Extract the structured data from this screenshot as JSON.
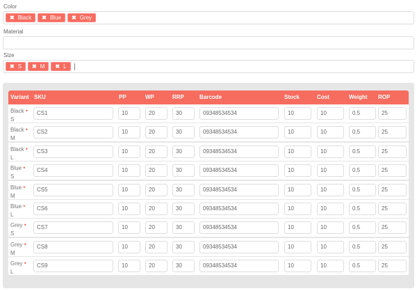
{
  "color": {
    "label": "Color",
    "tags": [
      "Black",
      "Blue",
      "Grey"
    ]
  },
  "material": {
    "label": "Material",
    "value": ""
  },
  "size": {
    "label": "Size",
    "tags": [
      "S",
      "M",
      "L"
    ]
  },
  "accent": "#f66c5f",
  "table": {
    "headers": [
      "Variant",
      "SKU",
      "PP",
      "WP",
      "RRP",
      "Barcode",
      "Stock",
      "Cost",
      "Weight",
      "ROP"
    ],
    "rows": [
      {
        "color": "Black",
        "size": "S",
        "sku": "CS1",
        "pp": "10",
        "wp": "20",
        "rrp": "30",
        "barcode": "09348534534",
        "stock": "10",
        "cost": "10",
        "weight": "0.5",
        "rop": "25"
      },
      {
        "color": "Black",
        "size": "M",
        "sku": "CS2",
        "pp": "10",
        "wp": "20",
        "rrp": "30",
        "barcode": "09348534534",
        "stock": "10",
        "cost": "10",
        "weight": "0.5",
        "rop": "25"
      },
      {
        "color": "Black",
        "size": "L",
        "sku": "CS3",
        "pp": "10",
        "wp": "20",
        "rrp": "30",
        "barcode": "09348534534",
        "stock": "10",
        "cost": "10",
        "weight": "0.5",
        "rop": "25"
      },
      {
        "color": "Blue",
        "size": "S",
        "sku": "CS4",
        "pp": "10",
        "wp": "20",
        "rrp": "30",
        "barcode": "09348534534",
        "stock": "10",
        "cost": "10",
        "weight": "0.5",
        "rop": "25"
      },
      {
        "color": "Blue",
        "size": "M",
        "sku": "CS5",
        "pp": "10",
        "wp": "20",
        "rrp": "30",
        "barcode": "09348534534",
        "stock": "10",
        "cost": "10",
        "weight": "0.5",
        "rop": "25"
      },
      {
        "color": "Blue",
        "size": "L",
        "sku": "CS6",
        "pp": "10",
        "wp": "20",
        "rrp": "30",
        "barcode": "09348534534",
        "stock": "10",
        "cost": "10",
        "weight": "0.5",
        "rop": "25"
      },
      {
        "color": "Grey",
        "size": "S",
        "sku": "CS7",
        "pp": "10",
        "wp": "20",
        "rrp": "30",
        "barcode": "09348534534",
        "stock": "10",
        "cost": "10",
        "weight": "0.5",
        "rop": "25"
      },
      {
        "color": "Grey",
        "size": "M",
        "sku": "CS8",
        "pp": "10",
        "wp": "20",
        "rrp": "30",
        "barcode": "09348534534",
        "stock": "10",
        "cost": "10",
        "weight": "0.5",
        "rop": "25"
      },
      {
        "color": "Grey",
        "size": "L",
        "sku": "CS9",
        "pp": "10",
        "wp": "20",
        "rrp": "30",
        "barcode": "09348534534",
        "stock": "10",
        "cost": "10",
        "weight": "0.5",
        "rop": "25"
      }
    ]
  }
}
